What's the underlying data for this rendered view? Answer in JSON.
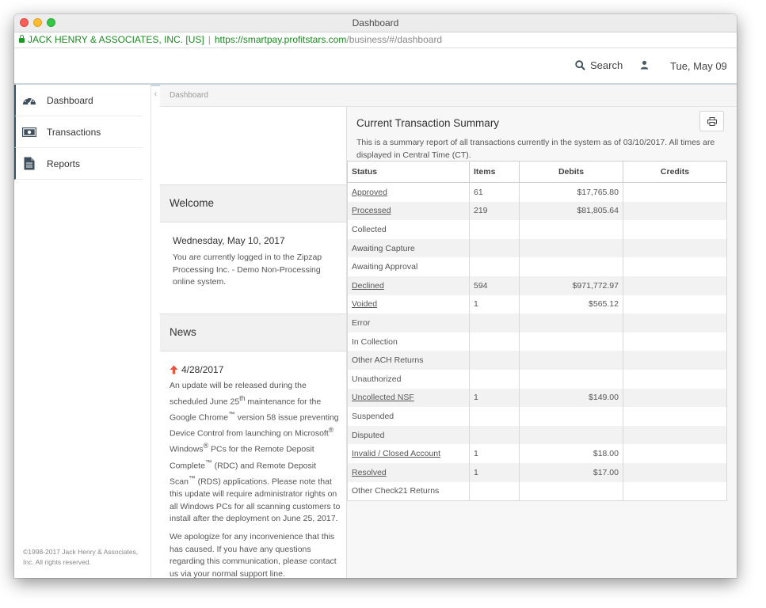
{
  "window": {
    "title": "Dashboard"
  },
  "addressbar": {
    "ev_label": "JACK HENRY & ASSOCIATES, INC. [US]",
    "separator": "|",
    "url_host": "https://smartpay.profitstars.com",
    "url_path": "/business/#/dashboard"
  },
  "header": {
    "search_label": "Search",
    "date": "Tue, May 09"
  },
  "sidebar": {
    "items": [
      {
        "label": "Dashboard",
        "icon": "dashboard-icon"
      },
      {
        "label": "Transactions",
        "icon": "money-icon"
      },
      {
        "label": "Reports",
        "icon": "document-icon"
      }
    ],
    "footer": "©1998-2017 Jack Henry & Associates, Inc. All rights reserved."
  },
  "breadcrumb": "Dashboard",
  "welcome": {
    "heading": "Welcome",
    "date": "Wednesday, May 10, 2017",
    "message": "You are currently logged in to the Zipzap Processing Inc. - Demo Non-Processing online system."
  },
  "news": {
    "heading": "News",
    "date": "4/28/2017",
    "p1_a": "An update will be released during the scheduled June 25",
    "p1_sup1": "th",
    "p1_b": " maintenance for the Google Chrome",
    "p1_sup2": "™",
    "p1_c": " version 58 issue preventing Device Control from launching on Microsoft",
    "p1_sup3": "®",
    "p1_d": " Windows",
    "p1_sup4": "®",
    "p1_e": " PCs for the Remote Deposit Complete",
    "p1_sup5": "™",
    "p1_f": " (RDC) and Remote Deposit Scan",
    "p1_sup6": "™",
    "p1_g": " (RDS) applications. Please note that this update will require administrator rights on all Windows PCs for all scanning customers to install after the deployment on June 25, 2017.",
    "p2": "We apologize for any inconvenience that this has caused. If you have any questions regarding this communication, please contact us via your normal support line."
  },
  "summary": {
    "title": "Current Transaction Summary",
    "description": "This is a summary report of all transactions currently in the system as of 03/10/2017. All times are displayed in Central Time (CT).",
    "columns": [
      "Status",
      "Items",
      "Debits",
      "Credits"
    ],
    "rows": [
      {
        "status": "Approved",
        "items": "61",
        "debits": "$17,765.80",
        "credits": ""
      },
      {
        "status": "Processed",
        "items": "219",
        "debits": "$81,805.64",
        "credits": ""
      },
      {
        "status": "Collected",
        "items": "",
        "debits": "",
        "credits": ""
      },
      {
        "status": "Awaiting Capture",
        "items": "",
        "debits": "",
        "credits": ""
      },
      {
        "status": "Awaiting Approval",
        "items": "",
        "debits": "",
        "credits": ""
      },
      {
        "status": "Declined",
        "items": "594",
        "debits": "$971,772.97",
        "credits": ""
      },
      {
        "status": "Voided",
        "items": "1",
        "debits": "$565.12",
        "credits": ""
      },
      {
        "status": "Error",
        "items": "",
        "debits": "",
        "credits": ""
      },
      {
        "status": "In Collection",
        "items": "",
        "debits": "",
        "credits": ""
      },
      {
        "status": "Other ACH Returns",
        "items": "",
        "debits": "",
        "credits": ""
      },
      {
        "status": "Unauthorized",
        "items": "",
        "debits": "",
        "credits": ""
      },
      {
        "status": "Uncollected NSF",
        "items": "1",
        "debits": "$149.00",
        "credits": ""
      },
      {
        "status": "Suspended",
        "items": "",
        "debits": "",
        "credits": ""
      },
      {
        "status": "Disputed",
        "items": "",
        "debits": "",
        "credits": ""
      },
      {
        "status": "Invalid / Closed Account",
        "items": "1",
        "debits": "$18.00",
        "credits": ""
      },
      {
        "status": "Resolved",
        "items": "1",
        "debits": "$17.00",
        "credits": ""
      },
      {
        "status": "Other Check21 Returns",
        "items": "",
        "debits": "",
        "credits": ""
      }
    ]
  },
  "colors": {
    "ev_green": "#1c8a22",
    "sidebar_accent": "#3a5364",
    "news_arrow": "#e8553e"
  }
}
